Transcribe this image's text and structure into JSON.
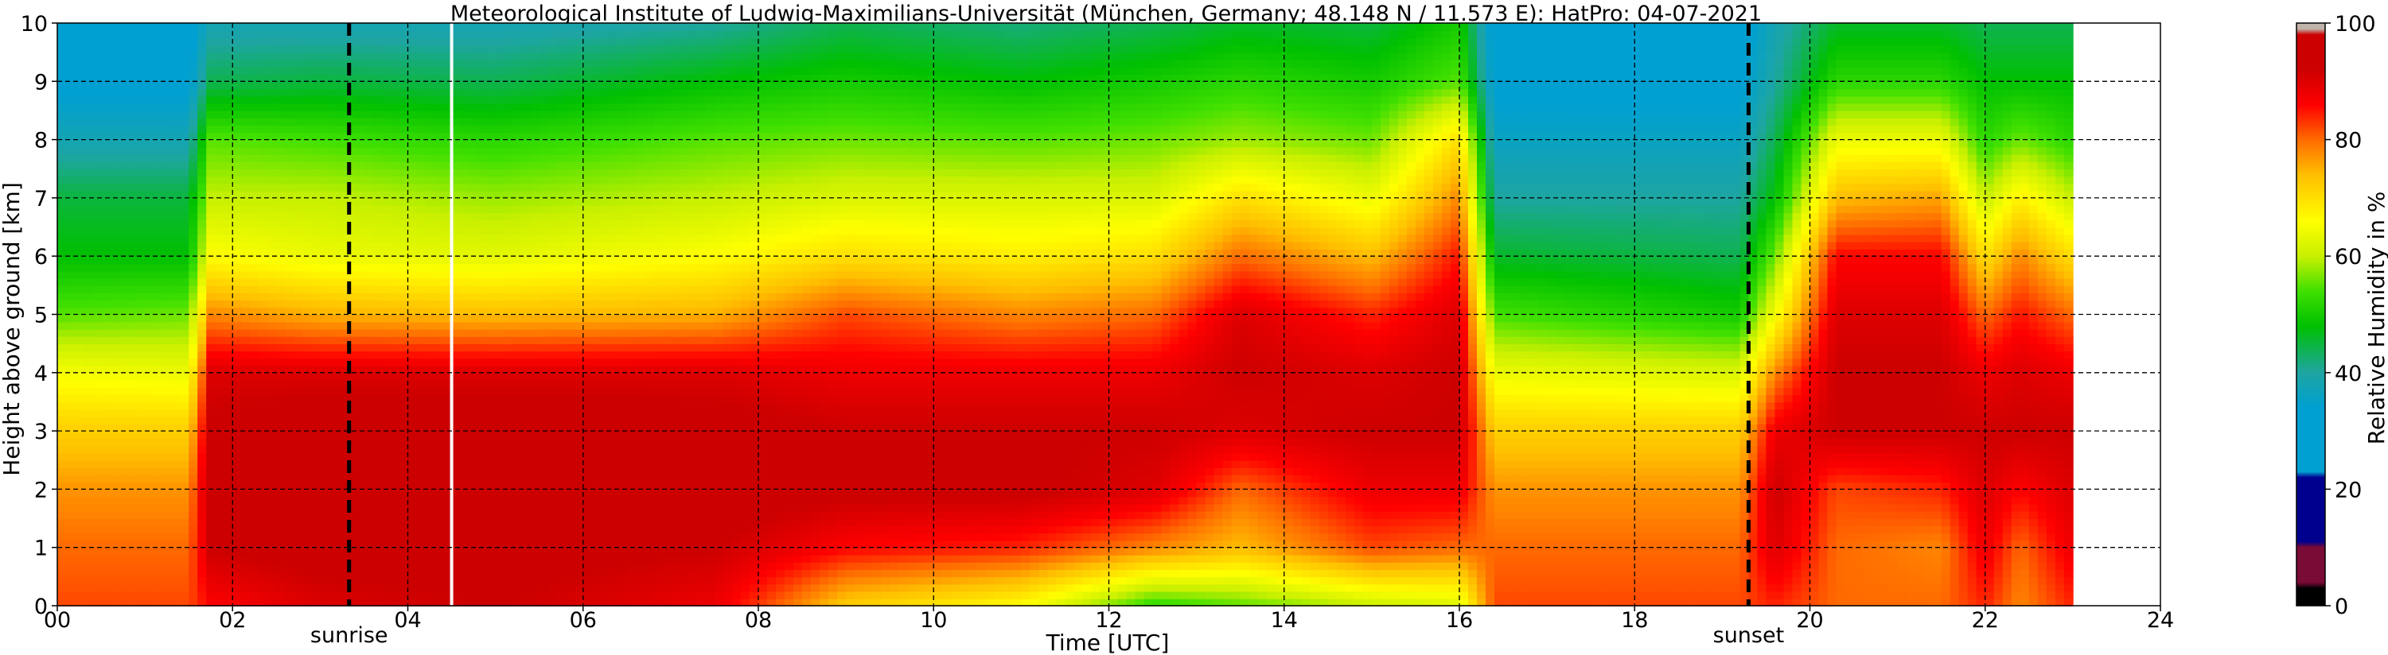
{
  "chart_data": {
    "type": "heatmap",
    "title": "Meteorological Institute of Ludwig-Maximilians-Universität (München, Germany; 48.148 N / 11.573 E):    HatPro: 04-07-2021",
    "xlabel": "Time [UTC]",
    "ylabel": "Height above ground [km]",
    "xlim": [
      0,
      24
    ],
    "ylim": [
      0,
      10
    ],
    "x_ticks": [
      "00",
      "02",
      "04",
      "06",
      "08",
      "10",
      "12",
      "14",
      "16",
      "18",
      "20",
      "22",
      "24"
    ],
    "y_ticks": [
      "0",
      "1",
      "2",
      "3",
      "4",
      "5",
      "6",
      "7",
      "8",
      "9",
      "10"
    ],
    "grid": true,
    "data_end_hour": 23.0,
    "events": [
      {
        "label": "sunrise",
        "hour": 3.33
      },
      {
        "label": "sunset",
        "hour": 19.3
      }
    ],
    "data_gap_hour": 4.5,
    "colorbar": {
      "label": "Relative Humidity in %",
      "ticks": [
        "0",
        "20",
        "40",
        "60",
        "80",
        "100"
      ],
      "range": [
        0,
        100
      ],
      "palette": [
        "#000000",
        "#7a0a36",
        "#00008f",
        "#00a0d2",
        "#1ea5a2",
        "#00c000",
        "#40e000",
        "#c8f000",
        "#ffff00",
        "#ffbe00",
        "#ff6a00",
        "#ff0000",
        "#cc0000",
        "#bfb3aa"
      ]
    },
    "profiles": [
      {
        "hour": 0.0,
        "rh": [
          82,
          80,
          77,
          72,
          65,
          55,
          48,
          45,
          38,
          33,
          32
        ]
      },
      {
        "hour": 1.5,
        "rh": [
          82,
          80,
          77,
          72,
          64,
          56,
          48,
          45,
          38,
          33,
          32
        ]
      },
      {
        "hour": 1.75,
        "rh": [
          86,
          92,
          95,
          93,
          90,
          78,
          66,
          60,
          55,
          44,
          38
        ]
      },
      {
        "hour": 3.0,
        "rh": [
          90,
          94,
          97,
          95,
          90,
          75,
          64,
          60,
          54,
          45,
          38
        ]
      },
      {
        "hour": 5.0,
        "rh": [
          92,
          94,
          96,
          95,
          90,
          74,
          63,
          58,
          52,
          44,
          38
        ]
      },
      {
        "hour": 7.5,
        "rh": [
          88,
          92,
          95,
          94,
          90,
          75,
          66,
          60,
          55,
          48,
          40
        ]
      },
      {
        "hour": 9.0,
        "rh": [
          72,
          86,
          93,
          92,
          88,
          82,
          70,
          62,
          56,
          50,
          44
        ]
      },
      {
        "hour": 11.0,
        "rh": [
          66,
          84,
          93,
          92,
          88,
          78,
          68,
          62,
          55,
          48,
          42
        ]
      },
      {
        "hour": 12.5,
        "rh": [
          52,
          78,
          90,
          92,
          88,
          80,
          70,
          62,
          56,
          50,
          44
        ]
      },
      {
        "hour": 13.5,
        "rh": [
          55,
          74,
          80,
          90,
          92,
          90,
          80,
          70,
          58,
          52,
          46
        ]
      },
      {
        "hour": 15.0,
        "rh": [
          60,
          82,
          88,
          92,
          90,
          84,
          74,
          64,
          56,
          50,
          45
        ]
      },
      {
        "hour": 16.0,
        "rh": [
          62,
          80,
          88,
          92,
          92,
          90,
          85,
          78,
          70,
          55,
          50
        ]
      },
      {
        "hour": 16.4,
        "rh": [
          82,
          80,
          77,
          72,
          64,
          54,
          46,
          40,
          36,
          33,
          32
        ]
      },
      {
        "hour": 19.2,
        "rh": [
          82,
          80,
          77,
          72,
          62,
          50,
          44,
          40,
          36,
          33,
          32
        ]
      },
      {
        "hour": 19.6,
        "rh": [
          84,
          90,
          92,
          88,
          78,
          65,
          56,
          48,
          44,
          40,
          38
        ]
      },
      {
        "hour": 20.3,
        "rh": [
          80,
          80,
          82,
          92,
          92,
          90,
          86,
          74,
          64,
          52,
          46
        ]
      },
      {
        "hour": 21.5,
        "rh": [
          80,
          78,
          84,
          92,
          92,
          90,
          86,
          76,
          64,
          52,
          46
        ]
      },
      {
        "hour": 22.0,
        "rh": [
          84,
          88,
          90,
          92,
          88,
          80,
          70,
          60,
          52,
          48,
          44
        ]
      },
      {
        "hour": 22.4,
        "rh": [
          78,
          80,
          86,
          92,
          90,
          85,
          78,
          68,
          56,
          48,
          44
        ]
      },
      {
        "hour": 23.0,
        "rh": [
          84,
          88,
          90,
          92,
          88,
          80,
          70,
          60,
          52,
          48,
          44
        ]
      }
    ]
  }
}
